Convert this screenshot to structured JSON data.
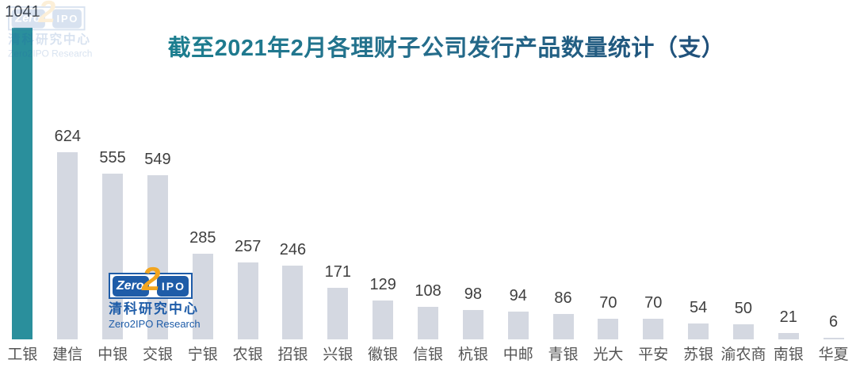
{
  "title": "截至2021年2月各理财子公司发行产品数量统计（支）",
  "watermark": {
    "zero": "Zero",
    "two": "2",
    "ipo": "IPO",
    "cn": "清科研究中心",
    "en": "Zero2IPO Research"
  },
  "colors": {
    "highlight_bar": "#2A8F9C",
    "default_bar": "#D4D8E1",
    "value_label": "#3F3F3F",
    "category_label": "#555555",
    "title_gradient_start": "#1C7E8F",
    "title_gradient_end": "#1F4E79",
    "logo_blue": "#1E5CA8",
    "logo_orange": "#F2A51F"
  },
  "chart_data": {
    "type": "bar",
    "title": "截至2021年2月各理财子公司发行产品数量统计（支）",
    "categories": [
      "工银",
      "建信",
      "中银",
      "交银",
      "宁银",
      "农银",
      "招银",
      "兴银",
      "徽银",
      "信银",
      "杭银",
      "中邮",
      "青银",
      "光大",
      "平安",
      "苏银",
      "渝农商",
      "南银",
      "华夏"
    ],
    "values": [
      1041,
      624,
      555,
      549,
      285,
      257,
      246,
      171,
      129,
      108,
      98,
      94,
      86,
      70,
      70,
      54,
      50,
      21,
      6
    ],
    "highlight_index": 0,
    "data_labels": true,
    "xlabel": "",
    "ylabel": "",
    "ylim": [
      0,
      1041
    ],
    "grid": false,
    "legend": false
  }
}
